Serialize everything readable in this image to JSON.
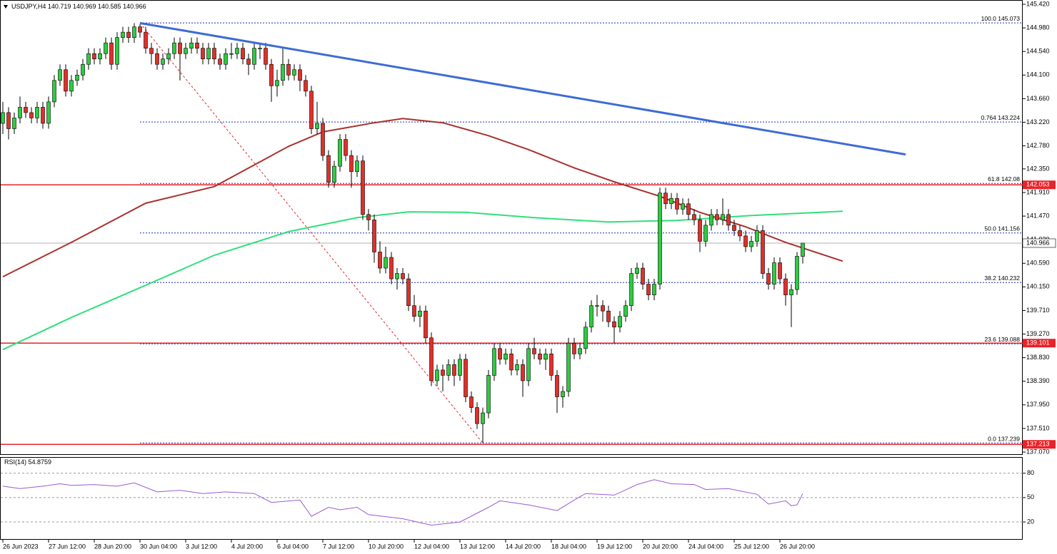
{
  "chart_data": {
    "type": "candlestick",
    "symbol": "USDJPY,H4",
    "bull_color": "#2ecc40",
    "bear_color": "#e0302a",
    "ohlc": [
      [
        143.2,
        143.6,
        143.0,
        143.4
      ],
      [
        143.4,
        143.5,
        142.9,
        143.1
      ],
      [
        143.1,
        143.4,
        143.0,
        143.3
      ],
      [
        143.3,
        143.7,
        143.2,
        143.5
      ],
      [
        143.5,
        143.6,
        143.3,
        143.4
      ],
      [
        143.4,
        143.5,
        143.2,
        143.3
      ],
      [
        143.3,
        143.6,
        143.2,
        143.5
      ],
      [
        143.5,
        143.6,
        143.1,
        143.2
      ],
      [
        143.2,
        143.7,
        143.1,
        143.6
      ],
      [
        143.6,
        144.1,
        143.5,
        144.0
      ],
      [
        144.0,
        144.3,
        143.9,
        144.2
      ],
      [
        144.2,
        144.3,
        143.7,
        143.8
      ],
      [
        143.8,
        144.1,
        143.7,
        144.0
      ],
      [
        144.0,
        144.2,
        143.9,
        144.1
      ],
      [
        144.1,
        144.4,
        144.0,
        144.3
      ],
      [
        144.3,
        144.6,
        144.2,
        144.5
      ],
      [
        144.5,
        144.6,
        144.3,
        144.4
      ],
      [
        144.4,
        144.6,
        144.3,
        144.5
      ],
      [
        144.5,
        144.8,
        144.4,
        144.7
      ],
      [
        144.7,
        144.8,
        144.2,
        144.3
      ],
      [
        144.3,
        144.9,
        144.2,
        144.8
      ],
      [
        144.8,
        145.0,
        144.7,
        144.9
      ],
      [
        144.9,
        145.0,
        144.7,
        144.8
      ],
      [
        144.8,
        145.07,
        144.7,
        145.0
      ],
      [
        145.0,
        145.05,
        144.8,
        144.9
      ],
      [
        144.9,
        145.0,
        144.5,
        144.6
      ],
      [
        144.6,
        144.7,
        144.3,
        144.5
      ],
      [
        144.5,
        144.6,
        144.2,
        144.3
      ],
      [
        144.3,
        144.5,
        144.2,
        144.4
      ],
      [
        144.4,
        144.6,
        144.3,
        144.5
      ],
      [
        144.5,
        144.8,
        144.4,
        144.7
      ],
      [
        144.7,
        144.8,
        144.0,
        144.5
      ],
      [
        144.5,
        144.7,
        144.4,
        144.6
      ],
      [
        144.6,
        144.8,
        144.5,
        144.7
      ],
      [
        144.7,
        144.8,
        144.5,
        144.6
      ],
      [
        144.6,
        144.7,
        144.3,
        144.4
      ],
      [
        144.4,
        144.7,
        144.3,
        144.6
      ],
      [
        144.6,
        144.7,
        144.3,
        144.4
      ],
      [
        144.4,
        144.5,
        144.2,
        144.3
      ],
      [
        144.3,
        144.6,
        144.2,
        144.5
      ],
      [
        144.5,
        144.7,
        144.4,
        144.5
      ],
      [
        144.5,
        144.7,
        144.4,
        144.6
      ],
      [
        144.6,
        144.7,
        144.3,
        144.4
      ],
      [
        144.4,
        144.5,
        144.1,
        144.3
      ],
      [
        144.3,
        144.7,
        144.2,
        144.6
      ],
      [
        144.6,
        144.7,
        144.4,
        144.6
      ],
      [
        144.6,
        144.7,
        144.2,
        144.3
      ],
      [
        144.3,
        144.4,
        143.6,
        143.9
      ],
      [
        143.9,
        144.2,
        143.7,
        144.0
      ],
      [
        144.0,
        144.6,
        143.9,
        144.3
      ],
      [
        144.3,
        144.4,
        144.0,
        144.1
      ],
      [
        144.1,
        144.3,
        144.0,
        144.2
      ],
      [
        144.2,
        144.3,
        143.8,
        144.0
      ],
      [
        144.0,
        144.1,
        143.7,
        143.8
      ],
      [
        143.8,
        143.9,
        143.0,
        143.1
      ],
      [
        143.1,
        143.6,
        143.0,
        143.2
      ],
      [
        143.2,
        143.3,
        142.5,
        142.6
      ],
      [
        142.6,
        142.7,
        142.0,
        142.1
      ],
      [
        142.1,
        142.5,
        142.0,
        142.4
      ],
      [
        142.4,
        143.0,
        142.3,
        142.9
      ],
      [
        142.9,
        143.0,
        142.5,
        142.6
      ],
      [
        142.6,
        142.7,
        142.0,
        142.3
      ],
      [
        142.3,
        142.6,
        142.2,
        142.5
      ],
      [
        142.5,
        142.6,
        141.4,
        141.5
      ],
      [
        141.5,
        141.6,
        141.2,
        141.4
      ],
      [
        141.4,
        141.5,
        140.6,
        140.8
      ],
      [
        140.8,
        141.0,
        140.4,
        140.5
      ],
      [
        140.5,
        140.9,
        140.4,
        140.7
      ],
      [
        140.7,
        140.8,
        140.2,
        140.3
      ],
      [
        140.3,
        140.5,
        140.1,
        140.4
      ],
      [
        140.4,
        140.5,
        140.2,
        140.3
      ],
      [
        140.3,
        140.4,
        139.7,
        139.8
      ],
      [
        139.8,
        140.0,
        139.5,
        139.6
      ],
      [
        139.6,
        139.8,
        139.4,
        139.7
      ],
      [
        139.7,
        139.8,
        139.1,
        139.2
      ],
      [
        139.2,
        139.3,
        138.3,
        138.4
      ],
      [
        138.4,
        138.7,
        138.3,
        138.6
      ],
      [
        138.6,
        138.7,
        138.2,
        138.5
      ],
      [
        138.5,
        138.8,
        138.4,
        138.7
      ],
      [
        138.7,
        138.8,
        138.3,
        138.5
      ],
      [
        138.5,
        138.9,
        138.4,
        138.8
      ],
      [
        138.8,
        138.9,
        138.0,
        138.1
      ],
      [
        138.1,
        138.2,
        137.8,
        137.9
      ],
      [
        137.9,
        138.0,
        137.5,
        137.6
      ],
      [
        137.6,
        137.9,
        137.24,
        137.8
      ],
      [
        137.8,
        138.6,
        137.7,
        138.5
      ],
      [
        138.5,
        139.1,
        138.4,
        139.0
      ],
      [
        139.0,
        139.1,
        138.7,
        138.8
      ],
      [
        138.8,
        139.0,
        138.7,
        138.9
      ],
      [
        138.9,
        139.0,
        138.5,
        138.6
      ],
      [
        138.6,
        138.8,
        138.5,
        138.7
      ],
      [
        138.7,
        138.8,
        138.1,
        138.4
      ],
      [
        138.4,
        139.1,
        138.3,
        139.0
      ],
      [
        139.0,
        139.2,
        138.8,
        138.9
      ],
      [
        138.9,
        139.0,
        138.7,
        138.8
      ],
      [
        138.8,
        139.0,
        138.6,
        138.9
      ],
      [
        138.9,
        139.0,
        138.4,
        138.5
      ],
      [
        138.5,
        138.6,
        137.8,
        138.1
      ],
      [
        138.1,
        138.3,
        137.9,
        138.2
      ],
      [
        138.2,
        139.2,
        138.1,
        139.1
      ],
      [
        139.1,
        139.2,
        138.8,
        138.9
      ],
      [
        138.9,
        139.1,
        138.8,
        139.0
      ],
      [
        139.0,
        139.5,
        138.9,
        139.4
      ],
      [
        139.4,
        139.9,
        139.3,
        139.8
      ],
      [
        139.8,
        140.0,
        139.6,
        139.8
      ],
      [
        139.8,
        139.9,
        139.5,
        139.7
      ],
      [
        139.7,
        139.8,
        139.4,
        139.5
      ],
      [
        139.5,
        139.6,
        139.1,
        139.4
      ],
      [
        139.4,
        139.7,
        139.3,
        139.6
      ],
      [
        139.6,
        139.9,
        139.5,
        139.8
      ],
      [
        139.8,
        140.5,
        139.7,
        140.4
      ],
      [
        140.4,
        140.6,
        140.3,
        140.5
      ],
      [
        140.5,
        140.6,
        140.1,
        140.2
      ],
      [
        140.2,
        140.3,
        139.9,
        140.0
      ],
      [
        140.0,
        140.3,
        139.9,
        140.2
      ],
      [
        140.2,
        142.0,
        140.1,
        141.9
      ],
      [
        141.9,
        142.0,
        141.6,
        141.7
      ],
      [
        141.7,
        141.9,
        141.6,
        141.8
      ],
      [
        141.8,
        141.9,
        141.5,
        141.6
      ],
      [
        141.6,
        141.8,
        141.5,
        141.7
      ],
      [
        141.7,
        141.8,
        141.4,
        141.5
      ],
      [
        141.5,
        141.6,
        141.3,
        141.4
      ],
      [
        141.4,
        141.5,
        140.8,
        141.0
      ],
      [
        141.0,
        141.4,
        140.9,
        141.3
      ],
      [
        141.3,
        141.6,
        141.2,
        141.5
      ],
      [
        141.5,
        141.6,
        141.3,
        141.4
      ],
      [
        141.4,
        141.8,
        141.3,
        141.5
      ],
      [
        141.5,
        141.6,
        141.2,
        141.3
      ],
      [
        141.3,
        141.4,
        141.1,
        141.2
      ],
      [
        141.2,
        141.3,
        141.0,
        141.1
      ],
      [
        141.1,
        141.2,
        140.8,
        140.9
      ],
      [
        140.9,
        141.1,
        140.8,
        141.0
      ],
      [
        141.0,
        141.3,
        140.9,
        141.2
      ],
      [
        141.2,
        141.3,
        140.3,
        140.4
      ],
      [
        140.4,
        140.5,
        140.1,
        140.2
      ],
      [
        140.2,
        140.7,
        140.1,
        140.6
      ],
      [
        140.6,
        140.7,
        140.2,
        140.3
      ],
      [
        140.3,
        140.4,
        139.8,
        140.0
      ],
      [
        140.0,
        140.2,
        139.4,
        140.1
      ],
      [
        140.1,
        140.8,
        140.0,
        140.72
      ],
      [
        140.719,
        140.969,
        140.585,
        140.966
      ]
    ],
    "xlim": [
      -0.5,
      178.5
    ],
    "xticks": [
      {
        "value": 0,
        "label": "26 Jun 2023"
      },
      {
        "value": 8,
        "label": "27 Jun 12:00"
      },
      {
        "value": 16,
        "label": "28 Jun 20:00"
      },
      {
        "value": 24,
        "label": "30 Jun 04:00"
      },
      {
        "value": 32,
        "label": "3 Jul 12:00"
      },
      {
        "value": 40,
        "label": "4 Jul 20:00"
      },
      {
        "value": 48,
        "label": "6 Jul 04:00"
      },
      {
        "value": 56,
        "label": "7 Jul 12:00"
      },
      {
        "value": 64,
        "label": "10 Jul 20:00"
      },
      {
        "value": 72,
        "label": "12 Jul 04:00"
      },
      {
        "value": 80,
        "label": "13 Jul 12:00"
      },
      {
        "value": 88,
        "label": "14 Jul 20:00"
      },
      {
        "value": 96,
        "label": "18 Jul 04:00"
      },
      {
        "value": 104,
        "label": "19 Jul 12:00"
      },
      {
        "value": 112,
        "label": "20 Jul 20:00"
      },
      {
        "value": 120,
        "label": "24 Jul 04:00"
      },
      {
        "value": 128,
        "label": "25 Jul 12:00"
      },
      {
        "value": 136,
        "label": "26 Jul 20:00"
      }
    ],
    "ylim": [
      137.03,
      145.5
    ],
    "yticks": [
      {
        "value": 145.42,
        "label": "145.420"
      },
      {
        "value": 144.98,
        "label": "144.980"
      },
      {
        "value": 144.54,
        "label": "144.540"
      },
      {
        "value": 144.1,
        "label": "144.100"
      },
      {
        "value": 143.66,
        "label": "143.660"
      },
      {
        "value": 143.22,
        "label": "143.220"
      },
      {
        "value": 142.78,
        "label": "142.780"
      },
      {
        "value": 142.35,
        "label": "142.350"
      },
      {
        "value": 141.91,
        "label": "141.910"
      },
      {
        "value": 141.47,
        "label": "141.470"
      },
      {
        "value": 141.03,
        "label": "141.030"
      },
      {
        "value": 140.59,
        "label": "140.590"
      },
      {
        "value": 140.15,
        "label": "140.150"
      },
      {
        "value": 139.71,
        "label": "139.710"
      },
      {
        "value": 139.27,
        "label": "139.270"
      },
      {
        "value": 138.83,
        "label": "138.830"
      },
      {
        "value": 138.39,
        "label": "138.390"
      },
      {
        "value": 137.95,
        "label": "137.950"
      },
      {
        "value": 137.51,
        "label": "137.510"
      },
      {
        "value": 137.07,
        "label": "137.070"
      }
    ],
    "moving_averages": [
      {
        "color": "#a8322d",
        "x": [
          0,
          12,
          25,
          37,
          50,
          56,
          65,
          70,
          77,
          85,
          92,
          100,
          107,
          115,
          122,
          130,
          137,
          147
        ],
        "values": [
          140.34,
          140.98,
          141.71,
          142.02,
          142.77,
          143.04,
          143.21,
          143.29,
          143.21,
          142.97,
          142.71,
          142.37,
          142.11,
          141.84,
          141.54,
          141.27,
          140.98,
          140.63
        ]
      },
      {
        "color": "#2ee07a",
        "x": [
          0,
          12,
          25,
          37,
          50,
          62,
          71,
          81,
          93,
          106,
          118,
          131,
          147
        ],
        "values": [
          138.98,
          139.58,
          140.18,
          140.74,
          141.18,
          141.44,
          141.55,
          141.54,
          141.44,
          141.36,
          141.39,
          141.48,
          141.56
        ]
      }
    ],
    "trendline": {
      "color": "#3d6bd6",
      "x": [
        24,
        158
      ],
      "values": [
        145.07,
        142.62
      ]
    },
    "fibonacci": {
      "color": "#1f2fb0",
      "x": [
        24,
        84
      ],
      "levels": [
        {
          "ratio": "100.0",
          "value": 145.073
        },
        {
          "ratio": "0.764",
          "value": 143.224
        },
        {
          "ratio": "61.8",
          "value": 142.08
        },
        {
          "ratio": "50.0",
          "value": 141.156
        },
        {
          "ratio": "38.2",
          "value": 140.232
        },
        {
          "ratio": "23.6",
          "value": 139.088
        },
        {
          "ratio": "0.0",
          "value": 137.239
        }
      ]
    },
    "hlines": {
      "color": "#e8232a",
      "values": [
        142.053,
        139.101,
        137.213
      ]
    },
    "rsi": {
      "name": "RSI(14)",
      "color": "#9b59d0",
      "ylim": [
        -1,
        99
      ],
      "yticks": [
        80,
        50,
        20
      ],
      "x": [
        0,
        3,
        7,
        10,
        12,
        16,
        20,
        23,
        27,
        31,
        35,
        39,
        44,
        47,
        52,
        54,
        57,
        59,
        62,
        64,
        70,
        75,
        80,
        85,
        87,
        92,
        97,
        100,
        102,
        107,
        111,
        114,
        117,
        121,
        123,
        127,
        132,
        134,
        137,
        138,
        139,
        140
      ],
      "values": [
        64,
        61,
        64,
        67,
        65,
        66,
        64,
        68,
        57,
        59,
        55,
        57,
        55,
        44,
        47,
        27,
        38,
        35,
        38,
        29,
        24,
        16,
        20,
        38,
        46,
        41,
        34,
        47,
        55,
        53,
        66,
        72,
        67,
        66,
        60,
        61,
        54,
        42,
        46,
        40,
        41,
        54.8759
      ]
    }
  }
}
